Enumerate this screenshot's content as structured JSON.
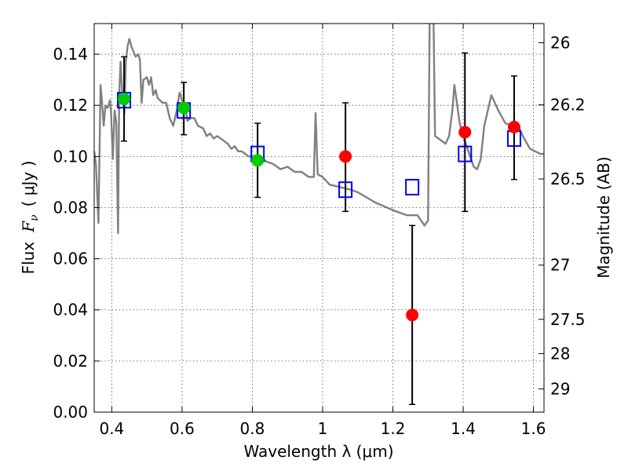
{
  "chart_data": {
    "type": "scatter",
    "xlabel": "Wavelength  λ (μm)",
    "ylabel": "Flux  F_ν  ( μJy )",
    "ylabel_parts": {
      "prefix": "Flux",
      "symbol": "F",
      "subscript": "ν",
      "unit": "( μJy )"
    },
    "ylabel_right": "Magnitude (AB)",
    "xlim": [
      0.35,
      1.63
    ],
    "ylim": [
      0.0,
      0.152
    ],
    "grid": true,
    "x_tick_labels": [
      "0.4",
      "0.6",
      "0.8",
      "1",
      "1.2",
      "1.4",
      "1.6"
    ],
    "x_ticks": [
      0.4,
      0.6,
      0.8,
      1.0,
      1.2,
      1.4,
      1.6
    ],
    "y_tick_labels": [
      "0.00",
      "0.02",
      "0.04",
      "0.06",
      "0.08",
      "0.10",
      "0.12",
      "0.14"
    ],
    "y_ticks": [
      0.0,
      0.02,
      0.04,
      0.06,
      0.08,
      0.1,
      0.12,
      0.14
    ],
    "right_ticks": [
      {
        "label": "26",
        "flux": 0.1445
      },
      {
        "label": "26.2",
        "flux": 0.1202
      },
      {
        "label": "26.5",
        "flux": 0.0912
      },
      {
        "label": "27",
        "flux": 0.0575
      },
      {
        "label": "27.5",
        "flux": 0.0363
      },
      {
        "label": "28",
        "flux": 0.0229
      },
      {
        "label": "29",
        "flux": 0.0091
      }
    ],
    "series": [
      {
        "kind": "line",
        "color": "#808080",
        "points": [
          [
            0.35,
            0.102
          ],
          [
            0.355,
            0.097
          ],
          [
            0.362,
            0.074
          ],
          [
            0.368,
            0.128
          ],
          [
            0.372,
            0.122
          ],
          [
            0.377,
            0.112
          ],
          [
            0.382,
            0.12
          ],
          [
            0.388,
            0.119
          ],
          [
            0.395,
            0.122
          ],
          [
            0.398,
            0.117
          ],
          [
            0.403,
            0.099
          ],
          [
            0.408,
            0.118
          ],
          [
            0.413,
            0.113
          ],
          [
            0.418,
            0.07
          ],
          [
            0.421,
            0.124
          ],
          [
            0.425,
            0.137
          ],
          [
            0.43,
            0.124
          ],
          [
            0.436,
            0.117
          ],
          [
            0.44,
            0.137
          ],
          [
            0.445,
            0.143
          ],
          [
            0.45,
            0.146
          ],
          [
            0.456,
            0.143
          ],
          [
            0.462,
            0.141
          ],
          [
            0.468,
            0.139
          ],
          [
            0.475,
            0.14
          ],
          [
            0.48,
            0.138
          ],
          [
            0.485,
            0.121
          ],
          [
            0.49,
            0.13
          ],
          [
            0.5,
            0.131
          ],
          [
            0.506,
            0.128
          ],
          [
            0.512,
            0.131
          ],
          [
            0.518,
            0.124
          ],
          [
            0.525,
            0.126
          ],
          [
            0.53,
            0.123
          ],
          [
            0.537,
            0.122
          ],
          [
            0.545,
            0.121
          ],
          [
            0.555,
            0.121
          ],
          [
            0.565,
            0.115
          ],
          [
            0.575,
            0.112
          ],
          [
            0.585,
            0.118
          ],
          [
            0.593,
            0.125
          ],
          [
            0.6,
            0.122
          ],
          [
            0.61,
            0.119
          ],
          [
            0.615,
            0.114
          ],
          [
            0.625,
            0.115
          ],
          [
            0.635,
            0.115
          ],
          [
            0.645,
            0.112
          ],
          [
            0.66,
            0.111
          ],
          [
            0.67,
            0.108
          ],
          [
            0.68,
            0.109
          ],
          [
            0.69,
            0.107
          ],
          [
            0.7,
            0.108
          ],
          [
            0.71,
            0.107
          ],
          [
            0.72,
            0.106
          ],
          [
            0.73,
            0.105
          ],
          [
            0.74,
            0.103
          ],
          [
            0.75,
            0.104
          ],
          [
            0.76,
            0.102
          ],
          [
            0.77,
            0.102
          ],
          [
            0.78,
            0.101
          ],
          [
            0.79,
            0.1
          ],
          [
            0.8,
            0.1
          ],
          [
            0.82,
            0.1
          ],
          [
            0.84,
            0.098
          ],
          [
            0.86,
            0.097
          ],
          [
            0.88,
            0.095
          ],
          [
            0.9,
            0.096
          ],
          [
            0.92,
            0.094
          ],
          [
            0.94,
            0.094
          ],
          [
            0.96,
            0.092
          ],
          [
            0.975,
            0.092
          ],
          [
            0.98,
            0.117
          ],
          [
            0.986,
            0.093
          ],
          [
            1.0,
            0.092
          ],
          [
            1.02,
            0.089
          ],
          [
            1.05,
            0.088
          ],
          [
            1.08,
            0.087
          ],
          [
            1.1,
            0.086
          ],
          [
            1.15,
            0.082
          ],
          [
            1.2,
            0.079
          ],
          [
            1.24,
            0.077
          ],
          [
            1.27,
            0.077
          ],
          [
            1.29,
            0.073
          ],
          [
            1.3,
            0.075
          ],
          [
            1.305,
            0.16
          ],
          [
            1.315,
            0.16
          ],
          [
            1.32,
            0.108
          ],
          [
            1.33,
            0.107
          ],
          [
            1.35,
            0.105
          ],
          [
            1.36,
            0.108
          ],
          [
            1.37,
            0.119
          ],
          [
            1.375,
            0.128
          ],
          [
            1.38,
            0.123
          ],
          [
            1.39,
            0.113
          ],
          [
            1.4,
            0.108
          ],
          [
            1.42,
            0.1
          ],
          [
            1.43,
            0.096
          ],
          [
            1.44,
            0.095
          ],
          [
            1.45,
            0.099
          ],
          [
            1.46,
            0.112
          ],
          [
            1.48,
            0.124
          ],
          [
            1.5,
            0.118
          ],
          [
            1.52,
            0.113
          ],
          [
            1.54,
            0.112
          ],
          [
            1.56,
            0.111
          ],
          [
            1.57,
            0.108
          ],
          [
            1.59,
            0.103
          ],
          [
            1.62,
            0.101
          ],
          [
            1.63,
            0.101
          ]
        ]
      },
      {
        "kind": "open-square",
        "color": "#0000ff",
        "points": [
          [
            0.435,
            0.122
          ],
          [
            0.605,
            0.118
          ],
          [
            0.815,
            0.101
          ],
          [
            1.065,
            0.087
          ],
          [
            1.255,
            0.088
          ],
          [
            1.405,
            0.101
          ],
          [
            1.545,
            0.107
          ]
        ]
      },
      {
        "kind": "filled-circle",
        "color": "#00cc00",
        "points": [
          [
            0.435,
            0.1225
          ],
          [
            0.605,
            0.119
          ],
          [
            0.815,
            0.0985
          ]
        ]
      },
      {
        "kind": "filled-circle",
        "color": "#ff0000",
        "points": [
          [
            1.065,
            0.1
          ],
          [
            1.255,
            0.038
          ],
          [
            1.405,
            0.1095
          ],
          [
            1.545,
            0.1115
          ]
        ]
      }
    ],
    "errorbars": [
      {
        "x": 0.435,
        "lo": 0.106,
        "hi": 0.139
      },
      {
        "x": 0.605,
        "lo": 0.1085,
        "hi": 0.129
      },
      {
        "x": 0.815,
        "lo": 0.084,
        "hi": 0.113
      },
      {
        "x": 1.065,
        "lo": 0.0785,
        "hi": 0.121
      },
      {
        "x": 1.255,
        "lo": 0.003,
        "hi": 0.073
      },
      {
        "x": 1.405,
        "lo": 0.0785,
        "hi": 0.1405
      },
      {
        "x": 1.545,
        "lo": 0.091,
        "hi": 0.1315
      }
    ]
  }
}
